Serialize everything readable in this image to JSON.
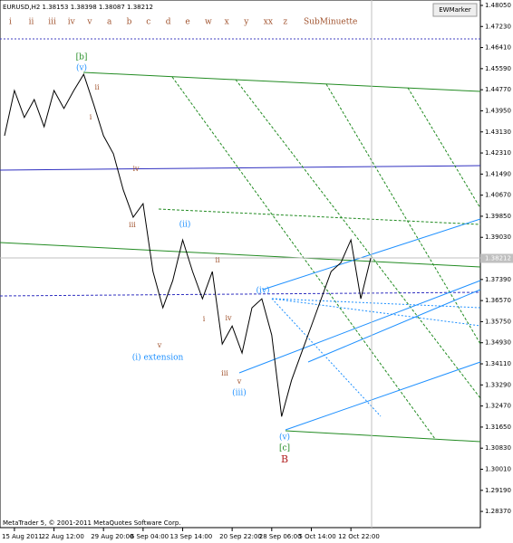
{
  "chart_data": {
    "type": "line",
    "title": "EURUSD,H2 1.38153 1.38398 1.38087 1.38212",
    "categories": [
      null,
      "15 Aug 2011",
      null,
      null,
      null,
      "22 Aug 12:00",
      null,
      null,
      null,
      null,
      "29 Aug 20:00",
      null,
      null,
      null,
      "6 Sep 04:00",
      null,
      null,
      null,
      "13 Sep 14:00",
      null,
      null,
      null,
      null,
      "20 Sep 22:00",
      null,
      null,
      null,
      "28 Sep 06:00",
      null,
      null,
      null,
      "5 Oct 14:00",
      null,
      null,
      null,
      "12 Oct 22:00",
      null,
      null
    ],
    "series": [
      {
        "name": "EURUSD",
        "color": "#000000",
        "values": [
          1.4298,
          1.4474,
          1.4369,
          1.4439,
          1.4333,
          1.4474,
          1.4404,
          1.4474,
          1.4537,
          1.4421,
          1.4298,
          1.4228,
          1.4087,
          1.3981,
          1.4034,
          1.377,
          1.3629,
          1.3735,
          1.3893,
          1.377,
          1.3664,
          1.377,
          1.3488,
          1.3558,
          1.3453,
          1.3629,
          1.3664,
          1.3523,
          1.3206,
          1.3347,
          1.3453,
          1.3558,
          1.3664,
          1.377,
          1.3805,
          1.3893,
          1.3664,
          1.3822
        ]
      }
    ],
    "ylim": [
      1.2774,
      1.4826
    ],
    "yticks": [
      {
        "value": 1.2837,
        "label": "1.28370"
      },
      {
        "value": 1.2919,
        "label": "1.29190"
      },
      {
        "value": 1.3001,
        "label": "1.30010"
      },
      {
        "value": 1.3083,
        "label": "1.30830"
      },
      {
        "value": 1.3165,
        "label": "1.31650"
      },
      {
        "value": 1.3247,
        "label": "1.32470"
      },
      {
        "value": 1.3329,
        "label": "1.33290"
      },
      {
        "value": 1.3411,
        "label": "1.34110"
      },
      {
        "value": 1.3493,
        "label": "1.34930"
      },
      {
        "value": 1.3575,
        "label": "1.35750"
      },
      {
        "value": 1.3657,
        "label": "1.36570"
      },
      {
        "value": 1.3739,
        "label": "1.37390"
      },
      {
        "value": 1.3903,
        "label": "1.39030"
      },
      {
        "value": 1.3985,
        "label": "1.39850"
      },
      {
        "value": 1.4067,
        "label": "1.40670"
      },
      {
        "value": 1.4149,
        "label": "1.41490"
      },
      {
        "value": 1.4231,
        "label": "1.42310"
      },
      {
        "value": 1.4313,
        "label": "1.43130"
      },
      {
        "value": 1.4395,
        "label": "1.43950"
      },
      {
        "value": 1.4477,
        "label": "1.44770"
      },
      {
        "value": 1.4559,
        "label": "1.45590"
      },
      {
        "value": 1.4641,
        "label": "1.46410"
      },
      {
        "value": 1.4723,
        "label": "1.47230"
      },
      {
        "value": 1.4805,
        "label": "1.48050"
      }
    ],
    "current_price": {
      "value": 1.38212,
      "label": "1.38212"
    }
  },
  "toolbar": [
    "i",
    "ii",
    "iii",
    "iv",
    "v",
    "a",
    "b",
    "c",
    "d",
    "e",
    "w",
    "x",
    "y",
    "xx",
    "z",
    "SubMinuette"
  ],
  "button": "EWMarker",
  "annotations": [
    "[b]",
    "(v)",
    "ii",
    "i",
    "iv",
    "iii",
    "(ii)",
    "ii",
    "i",
    "iv",
    "v",
    "(i) extension",
    "iii",
    "v",
    "(iii)",
    "(iv)",
    "(v)",
    "[c]",
    "B"
  ],
  "footer": "MetaTrader 5, © 2001-2011 MetaQuotes Software Corp."
}
